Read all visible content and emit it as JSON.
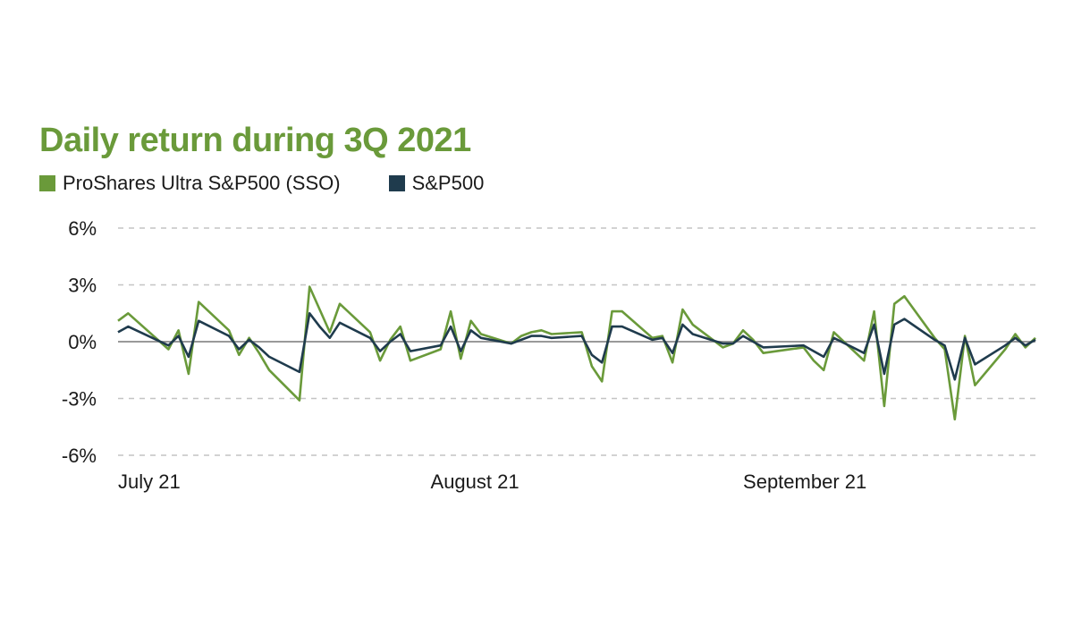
{
  "chart_data": {
    "type": "line",
    "title": "Daily return during 3Q 2021",
    "xlabel": "",
    "ylabel": "",
    "ylim": [
      -6,
      6
    ],
    "yticks": [
      6,
      3,
      0,
      -3,
      -6
    ],
    "ytick_labels": [
      "6%",
      "3%",
      "0%",
      "-3%",
      "-6%"
    ],
    "xlim": [
      "2021-07-01",
      "2021-09-30"
    ],
    "xtick_dates": [
      "2021-07-01",
      "2021-08-01",
      "2021-09-01"
    ],
    "xtick_labels": [
      "July 21",
      "August 21",
      "September 21"
    ],
    "grid": true,
    "legend": "top-left",
    "x": [
      "2021-07-01",
      "2021-07-02",
      "2021-07-06",
      "2021-07-07",
      "2021-07-08",
      "2021-07-09",
      "2021-07-12",
      "2021-07-13",
      "2021-07-14",
      "2021-07-15",
      "2021-07-16",
      "2021-07-19",
      "2021-07-20",
      "2021-07-21",
      "2021-07-22",
      "2021-07-23",
      "2021-07-26",
      "2021-07-27",
      "2021-07-28",
      "2021-07-29",
      "2021-07-30",
      "2021-08-02",
      "2021-08-03",
      "2021-08-04",
      "2021-08-05",
      "2021-08-06",
      "2021-08-09",
      "2021-08-10",
      "2021-08-11",
      "2021-08-12",
      "2021-08-13",
      "2021-08-16",
      "2021-08-17",
      "2021-08-18",
      "2021-08-19",
      "2021-08-20",
      "2021-08-23",
      "2021-08-24",
      "2021-08-25",
      "2021-08-26",
      "2021-08-27",
      "2021-08-30",
      "2021-08-31",
      "2021-09-01",
      "2021-09-02",
      "2021-09-03",
      "2021-09-07",
      "2021-09-08",
      "2021-09-09",
      "2021-09-10",
      "2021-09-13",
      "2021-09-14",
      "2021-09-15",
      "2021-09-16",
      "2021-09-17",
      "2021-09-20",
      "2021-09-21",
      "2021-09-22",
      "2021-09-23",
      "2021-09-24",
      "2021-09-27",
      "2021-09-28",
      "2021-09-29",
      "2021-09-30"
    ],
    "series": [
      {
        "name": "ProShares Ultra S&P500 (SSO)",
        "color": "#6a9a3a",
        "values": [
          1.1,
          1.5,
          -0.4,
          0.6,
          -1.7,
          2.1,
          0.6,
          -0.7,
          0.2,
          -0.6,
          -1.5,
          -3.1,
          2.9,
          1.7,
          0.5,
          2.0,
          0.5,
          -1.0,
          0.1,
          0.8,
          -1.0,
          -0.4,
          1.6,
          -0.9,
          1.1,
          0.4,
          -0.1,
          0.3,
          0.5,
          0.6,
          0.4,
          0.5,
          -1.3,
          -2.1,
          1.6,
          1.6,
          0.2,
          0.3,
          -1.1,
          1.7,
          0.9,
          -0.3,
          -0.1,
          0.6,
          0.1,
          -0.6,
          -0.3,
          -1.0,
          -1.5,
          0.5,
          -1.0,
          1.6,
          -3.4,
          2.0,
          2.4,
          0.2,
          -0.4,
          -4.1,
          0.3,
          -2.3,
          -0.4,
          0.4,
          -0.3,
          0.2
        ]
      },
      {
        "name": "S&P500",
        "color": "#1f3b4d",
        "values": [
          0.5,
          0.8,
          -0.2,
          0.3,
          -0.8,
          1.1,
          0.3,
          -0.4,
          0.1,
          -0.3,
          -0.8,
          -1.6,
          1.5,
          0.8,
          0.2,
          1.0,
          0.2,
          -0.5,
          0.0,
          0.4,
          -0.5,
          -0.2,
          0.8,
          -0.5,
          0.6,
          0.2,
          -0.1,
          0.1,
          0.3,
          0.3,
          0.2,
          0.3,
          -0.7,
          -1.1,
          0.8,
          0.8,
          0.1,
          0.2,
          -0.6,
          0.9,
          0.4,
          -0.1,
          -0.1,
          0.3,
          0.0,
          -0.3,
          -0.2,
          -0.5,
          -0.8,
          0.2,
          -0.6,
          0.9,
          -1.7,
          0.9,
          1.2,
          0.1,
          -0.2,
          -2.0,
          0.2,
          -1.2,
          -0.2,
          0.2,
          -0.2,
          0.1
        ]
      }
    ]
  }
}
